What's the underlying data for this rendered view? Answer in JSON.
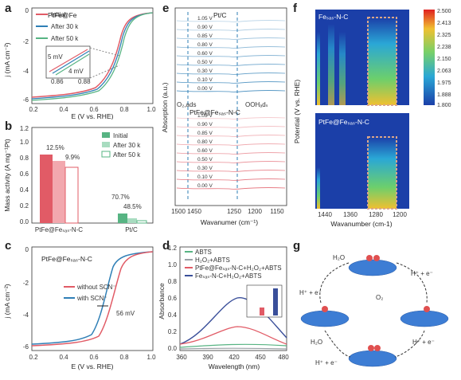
{
  "labels": {
    "a": "a",
    "b": "b",
    "c": "c",
    "d": "d",
    "e": "e",
    "f": "f",
    "g": "g"
  },
  "colors": {
    "red": "#e15b66",
    "blue": "#2f7fb6",
    "green": "#57b483",
    "navy": "#3a4f9a",
    "gray": "#9aa0a6"
  },
  "panel_a": {
    "title": "PtFe@Fe",
    "title_sub": "SAs",
    "title_tail": "-N-C",
    "xlabel": "E (V vs. RHE)",
    "ylabel": "j (mA cm⁻²)",
    "legend": [
      "Initial",
      "After 30 k",
      "After 50 k"
    ],
    "inset_5mv": "5 mV",
    "inset_4mv": "4 mV",
    "inset_x": [
      "0.86",
      "0.88"
    ],
    "inset_y": [
      "-2.5",
      "-3.0",
      "-3.5"
    ],
    "xticks": [
      "0.2",
      "0.4",
      "0.6",
      "0.8",
      "1.0"
    ],
    "yticks": [
      "0",
      "-2",
      "-4",
      "-6"
    ]
  },
  "panel_b": {
    "ylabel": "Mass activity (A mg⁻¹Pt)",
    "legend": [
      "Initial",
      "After 30 k",
      "After 50 k"
    ],
    "groups": [
      "PtFe@Feₛₐₛ-N-C",
      "Pt/C"
    ],
    "ann": [
      "12.5%",
      "9.9%",
      "70.7%",
      "48.5%"
    ],
    "yticks": [
      "0.0",
      "0.2",
      "0.4",
      "0.6",
      "0.8",
      "1.0",
      "1.2"
    ]
  },
  "panel_c": {
    "title": "PtFe@Feₛₐₛ-N-C",
    "legend": [
      "without SCN⁻",
      "with SCN⁻"
    ],
    "shift": "56 mV",
    "xlabel": "E (V vs. RHE)",
    "ylabel": "j (mA cm⁻²)",
    "xticks": [
      "0.2",
      "0.4",
      "0.6",
      "0.8",
      "1.0"
    ],
    "yticks": [
      "0",
      "-2",
      "-4",
      "-6"
    ]
  },
  "panel_d": {
    "legend": [
      "ABTS",
      "H₂O₂+ABTS",
      "PtFe@Feₛₐₛ-N-C+H₂O₂+ABTS",
      "Feₛₐₛ-N-C+H₂O₂+ABTS"
    ],
    "xlabel": "Wavelength (nm)",
    "ylabel": "Absorbance",
    "xticks": [
      "360",
      "390",
      "420",
      "450",
      "480"
    ],
    "yticks": [
      "0.0",
      "0.2",
      "0.4",
      "0.6",
      "0.8",
      "1.0",
      "1.2"
    ]
  },
  "panel_e": {
    "top_title": "Pt/C",
    "bottom_title": "PtFe@Feₛₐₛ-N-C",
    "potentials": [
      "1.05 V",
      "0.90 V",
      "0.85 V",
      "0.80 V",
      "0.60 V",
      "0.50 V",
      "0.30 V",
      "0.10 V",
      "0.00 V"
    ],
    "o2_label": "O₂,ads",
    "ooh_label": "OOHₐdₛ",
    "xlabel": "Wavanumer (cm⁻¹)",
    "ylabel": "Absorption (a.u.)",
    "xticks": [
      "1500",
      "1450",
      "1250",
      "1200",
      "1150"
    ]
  },
  "panel_f": {
    "top_title": "Feₛₐₛ-N-C",
    "bottom_title": "PtFe@Feₛₐₛ-N-C",
    "ylabel": "Potential (V vs. RHE)",
    "xlabel": "Wavanumber (cm-1)",
    "yticks": [
      "0",
      "0.1",
      "0.3",
      "0.5",
      "0.7",
      "0.9",
      "1.1",
      "1.2"
    ],
    "xticks": [
      "1440",
      "1360",
      "1280",
      "1200"
    ],
    "colorbar": [
      "2.500",
      "2.413",
      "2.325",
      "2.238",
      "2.150",
      "2.063",
      "1.975",
      "1.888",
      "1.800"
    ]
  },
  "panel_g": {
    "top": "H₂O",
    "h1": "H⁺ + e⁻",
    "h2": "H⁺ + e⁻",
    "h3": "H⁺ + e⁻",
    "h4": "H⁺ + e⁻",
    "o2": "O₂",
    "h2o_l": "H₂O"
  }
}
